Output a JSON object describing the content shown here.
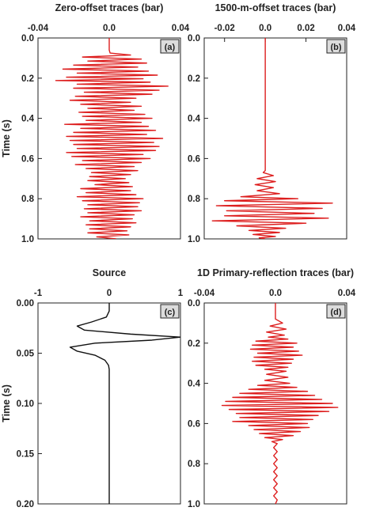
{
  "chart_data": [
    {
      "panel": "(a)",
      "type": "line",
      "title": "Zero-offset traces (bar)",
      "xlabel": "",
      "ylabel": "Time (s)",
      "xlim": [
        -0.04,
        0.04
      ],
      "ylim": [
        0.0,
        1.0
      ],
      "xticks": [
        "-0.04",
        "0.0",
        "0.04"
      ],
      "yticks": [
        "0.0",
        "0.2",
        "0.4",
        "0.6",
        "0.8",
        "1.0"
      ],
      "series": [
        {
          "color": "#dd1e1e",
          "points": [
            [
              0.0,
              0.0
            ],
            [
              0.0,
              0.06
            ],
            [
              0.0005,
              0.075
            ],
            [
              0.012,
              0.085
            ],
            [
              -0.015,
              0.095
            ],
            [
              0.018,
              0.105
            ],
            [
              -0.012,
              0.115
            ],
            [
              0.021,
              0.125
            ],
            [
              -0.02,
              0.135
            ],
            [
              0.016,
              0.145
            ],
            [
              -0.026,
              0.155
            ],
            [
              0.022,
              0.165
            ],
            [
              -0.018,
              0.175
            ],
            [
              0.027,
              0.185
            ],
            [
              -0.024,
              0.195
            ],
            [
              0.019,
              0.203
            ],
            [
              -0.03,
              0.212
            ],
            [
              0.023,
              0.22
            ],
            [
              -0.018,
              0.23
            ],
            [
              0.033,
              0.24
            ],
            [
              -0.02,
              0.25
            ],
            [
              0.028,
              0.26
            ],
            [
              -0.014,
              0.27
            ],
            [
              0.024,
              0.28
            ],
            [
              -0.019,
              0.29
            ],
            [
              0.015,
              0.3
            ],
            [
              -0.022,
              0.31
            ],
            [
              0.012,
              0.32
            ],
            [
              -0.016,
              0.33
            ],
            [
              0.018,
              0.34
            ],
            [
              -0.012,
              0.35
            ],
            [
              0.014,
              0.36
            ],
            [
              -0.017,
              0.37
            ],
            [
              0.02,
              0.38
            ],
            [
              -0.015,
              0.39
            ],
            [
              0.024,
              0.4
            ],
            [
              -0.013,
              0.41
            ],
            [
              0.018,
              0.42
            ],
            [
              -0.025,
              0.43
            ],
            [
              0.022,
              0.44
            ],
            [
              -0.016,
              0.45
            ],
            [
              0.026,
              0.46
            ],
            [
              -0.02,
              0.47
            ],
            [
              0.021,
              0.48
            ],
            [
              -0.024,
              0.49
            ],
            [
              0.03,
              0.5
            ],
            [
              -0.022,
              0.51
            ],
            [
              0.025,
              0.52
            ],
            [
              -0.02,
              0.53
            ],
            [
              0.028,
              0.54
            ],
            [
              -0.018,
              0.55
            ],
            [
              0.026,
              0.56
            ],
            [
              -0.024,
              0.57
            ],
            [
              0.019,
              0.58
            ],
            [
              -0.021,
              0.59
            ],
            [
              0.023,
              0.6
            ],
            [
              -0.015,
              0.61
            ],
            [
              0.018,
              0.62
            ],
            [
              -0.019,
              0.63
            ],
            [
              0.014,
              0.64
            ],
            [
              -0.013,
              0.65
            ],
            [
              0.016,
              0.66
            ],
            [
              -0.01,
              0.67
            ],
            [
              0.012,
              0.68
            ],
            [
              -0.011,
              0.69
            ],
            [
              0.009,
              0.7
            ],
            [
              -0.012,
              0.71
            ],
            [
              0.011,
              0.72
            ],
            [
              -0.008,
              0.73
            ],
            [
              0.013,
              0.74
            ],
            [
              -0.016,
              0.75
            ],
            [
              0.012,
              0.76
            ],
            [
              -0.013,
              0.77
            ],
            [
              0.015,
              0.78
            ],
            [
              -0.018,
              0.79
            ],
            [
              0.019,
              0.8
            ],
            [
              -0.015,
              0.81
            ],
            [
              0.017,
              0.82
            ],
            [
              -0.012,
              0.83
            ],
            [
              0.016,
              0.84
            ],
            [
              -0.014,
              0.85
            ],
            [
              0.018,
              0.86
            ],
            [
              -0.012,
              0.87
            ],
            [
              0.014,
              0.88
            ],
            [
              -0.016,
              0.89
            ],
            [
              0.013,
              0.9
            ],
            [
              -0.011,
              0.91
            ],
            [
              0.015,
              0.92
            ],
            [
              -0.013,
              0.93
            ],
            [
              0.012,
              0.94
            ],
            [
              -0.011,
              0.95
            ],
            [
              0.01,
              0.96
            ],
            [
              -0.012,
              0.97
            ],
            [
              0.011,
              0.98
            ],
            [
              -0.007,
              0.99
            ],
            [
              0.004,
              1.0
            ]
          ]
        }
      ]
    },
    {
      "panel": "(b)",
      "type": "line",
      "title": "1500-m-offset traces (bar)",
      "xlabel": "",
      "ylabel": "",
      "xlim": [
        -0.03,
        0.04
      ],
      "ylim": [
        0.0,
        1.0
      ],
      "xticks": [
        "-0.02",
        "0.0",
        "0.02",
        "0.04"
      ],
      "yticks": [
        "0.0",
        "0.2",
        "0.4",
        "0.6",
        "0.8",
        "1.0"
      ],
      "series": [
        {
          "color": "#dd1e1e",
          "points": [
            [
              0.0,
              0.0
            ],
            [
              0.0,
              0.66
            ],
            [
              -0.001,
              0.67
            ],
            [
              0.004,
              0.685
            ],
            [
              -0.004,
              0.7
            ],
            [
              0.005,
              0.715
            ],
            [
              -0.005,
              0.73
            ],
            [
              0.004,
              0.745
            ],
            [
              -0.004,
              0.76
            ],
            [
              0.007,
              0.775
            ],
            [
              -0.012,
              0.79
            ],
            [
              0.016,
              0.8
            ],
            [
              -0.02,
              0.81
            ],
            [
              0.033,
              0.822
            ],
            [
              -0.024,
              0.835
            ],
            [
              0.028,
              0.848
            ],
            [
              -0.019,
              0.86
            ],
            [
              0.024,
              0.873
            ],
            [
              -0.02,
              0.885
            ],
            [
              0.031,
              0.897
            ],
            [
              -0.026,
              0.91
            ],
            [
              0.02,
              0.922
            ],
            [
              -0.014,
              0.935
            ],
            [
              0.01,
              0.947
            ],
            [
              -0.008,
              0.958
            ],
            [
              0.007,
              0.968
            ],
            [
              -0.006,
              0.978
            ],
            [
              0.005,
              0.988
            ],
            [
              -0.003,
              0.995
            ],
            [
              0.0,
              1.0
            ]
          ]
        }
      ]
    },
    {
      "panel": "(c)",
      "type": "line",
      "title": "Source",
      "xlabel": "",
      "ylabel": "Time (s)",
      "xlim": [
        -1,
        1
      ],
      "ylim": [
        0.0,
        0.2
      ],
      "xticks": [
        "-1",
        "0",
        "1"
      ],
      "yticks": [
        "0.00",
        "0.05",
        "0.10",
        "0.15",
        "0.20"
      ],
      "series": [
        {
          "color": "#111111",
          "points": [
            [
              0.0,
              0.0
            ],
            [
              0.0,
              0.008
            ],
            [
              -0.04,
              0.014
            ],
            [
              -0.25,
              0.019
            ],
            [
              -0.45,
              0.023
            ],
            [
              -0.35,
              0.027
            ],
            [
              0.3,
              0.031
            ],
            [
              1.0,
              0.034
            ],
            [
              0.6,
              0.037
            ],
            [
              -0.2,
              0.04
            ],
            [
              -0.55,
              0.044
            ],
            [
              -0.45,
              0.048
            ],
            [
              -0.2,
              0.052
            ],
            [
              -0.06,
              0.057
            ],
            [
              -0.01,
              0.062
            ],
            [
              0.0,
              0.066
            ],
            [
              0.0,
              0.2
            ]
          ]
        }
      ]
    },
    {
      "panel": "(d)",
      "type": "line",
      "title": "1D Primary-reflection traces (bar)",
      "xlabel": "",
      "ylabel": "",
      "xlim": [
        -0.04,
        0.04
      ],
      "ylim": [
        0.0,
        1.0
      ],
      "xticks": [
        "-0.04",
        "0.0",
        "0.04"
      ],
      "yticks": [
        "0.0",
        "0.2",
        "0.4",
        "0.6",
        "0.8",
        "1.0"
      ],
      "series": [
        {
          "color": "#dd1e1e",
          "points": [
            [
              0.0,
              0.0
            ],
            [
              0.0,
              0.08
            ],
            [
              0.004,
              0.1
            ],
            [
              -0.003,
              0.115
            ],
            [
              0.006,
              0.13
            ],
            [
              -0.005,
              0.145
            ],
            [
              0.005,
              0.16
            ],
            [
              -0.004,
              0.17
            ],
            [
              0.007,
              0.18
            ],
            [
              -0.011,
              0.19
            ],
            [
              0.012,
              0.2
            ],
            [
              -0.013,
              0.21
            ],
            [
              0.01,
              0.22
            ],
            [
              -0.014,
              0.23
            ],
            [
              0.013,
              0.24
            ],
            [
              -0.01,
              0.25
            ],
            [
              0.015,
              0.26
            ],
            [
              -0.012,
              0.27
            ],
            [
              0.01,
              0.28
            ],
            [
              -0.013,
              0.29
            ],
            [
              0.009,
              0.3
            ],
            [
              -0.011,
              0.31
            ],
            [
              0.007,
              0.32
            ],
            [
              -0.006,
              0.33
            ],
            [
              0.006,
              0.34
            ],
            [
              -0.005,
              0.355
            ],
            [
              0.007,
              0.37
            ],
            [
              -0.006,
              0.385
            ],
            [
              0.008,
              0.4
            ],
            [
              -0.01,
              0.41
            ],
            [
              0.012,
              0.42
            ],
            [
              -0.015,
              0.43
            ],
            [
              0.018,
              0.44
            ],
            [
              -0.02,
              0.45
            ],
            [
              0.022,
              0.46
            ],
            [
              -0.024,
              0.47
            ],
            [
              0.026,
              0.48
            ],
            [
              -0.028,
              0.49
            ],
            [
              0.032,
              0.5
            ],
            [
              -0.03,
              0.51
            ],
            [
              0.035,
              0.52
            ],
            [
              -0.026,
              0.53
            ],
            [
              0.03,
              0.54
            ],
            [
              -0.022,
              0.55
            ],
            [
              0.024,
              0.56
            ],
            [
              -0.02,
              0.57
            ],
            [
              0.021,
              0.58
            ],
            [
              -0.024,
              0.59
            ],
            [
              0.018,
              0.6
            ],
            [
              -0.015,
              0.61
            ],
            [
              0.019,
              0.62
            ],
            [
              -0.012,
              0.63
            ],
            [
              0.014,
              0.64
            ],
            [
              -0.009,
              0.65
            ],
            [
              0.01,
              0.66
            ],
            [
              -0.006,
              0.67
            ],
            [
              0.004,
              0.68
            ],
            [
              -0.002,
              0.69
            ],
            [
              0.001,
              0.7
            ],
            [
              -0.001,
              0.72
            ],
            [
              0.001,
              0.74
            ],
            [
              -0.001,
              0.76
            ],
            [
              0.001,
              0.78
            ],
            [
              -0.001,
              0.8
            ],
            [
              0.001,
              0.82
            ],
            [
              -0.001,
              0.84
            ],
            [
              0.001,
              0.86
            ],
            [
              -0.001,
              0.88
            ],
            [
              0.001,
              0.9
            ],
            [
              -0.001,
              0.92
            ],
            [
              0.001,
              0.94
            ],
            [
              -0.001,
              0.96
            ],
            [
              0.001,
              0.98
            ],
            [
              0.0,
              1.0
            ]
          ]
        }
      ]
    }
  ]
}
